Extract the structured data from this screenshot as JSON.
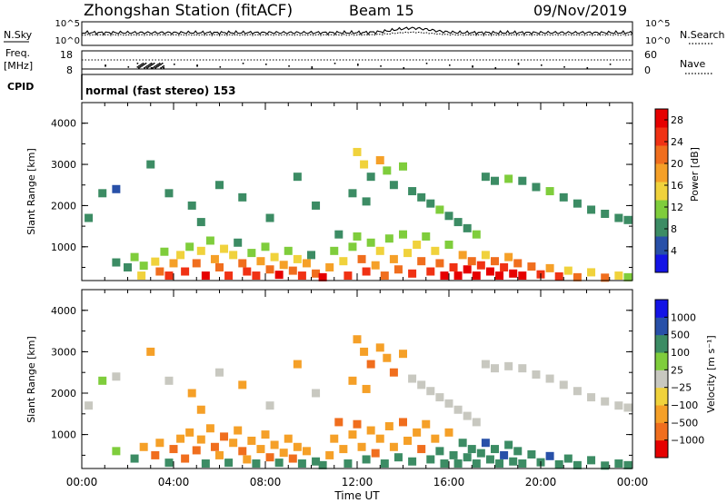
{
  "header": {
    "station": "Zhongshan Station (fitACF)",
    "beam": "Beam 15",
    "date": "09/Nov/2019"
  },
  "nsky_panel": {
    "left_label": "N.Sky",
    "right_label": "N.Search",
    "left_ticks": [
      "10^5",
      "10^0"
    ],
    "right_ticks": [
      "10^5",
      "10^0"
    ]
  },
  "freq_panel": {
    "left_label_1": "Freq.",
    "left_label_2": "[MHz]",
    "left_ticks": [
      "18",
      "8"
    ],
    "right_label": "Nave",
    "right_ticks": [
      "60",
      "0"
    ]
  },
  "cpid": {
    "label": "CPID",
    "text": "normal (fast stereo) 153"
  },
  "colors": {
    "power": [
      "#1414e6",
      "#2850a8",
      "#3c8c64",
      "#7fcd3c",
      "#f0d23c",
      "#f5a028",
      "#f06e1e",
      "#f03214",
      "#e60000"
    ],
    "velocity": [
      "#e60000",
      "#f06e1e",
      "#f5a028",
      "#f0d23c",
      "#c8c8c0",
      "#7fcd3c",
      "#3c8c64",
      "#2850a8",
      "#1414e6"
    ]
  },
  "chart_data": [
    {
      "type": "heatmap",
      "title": "Power [dB]",
      "xlabel": "",
      "ylabel": "Slant Range [km]",
      "x_ticks": [
        "00:00",
        "04:00",
        "08:00",
        "12:00",
        "16:00",
        "20:00",
        "00:00"
      ],
      "xlim": [
        0,
        24
      ],
      "ylim": [
        180,
        4500
      ],
      "y_ticks": [
        "1000",
        "2000",
        "3000",
        "4000"
      ],
      "colorbar_ticks": [
        "4",
        "8",
        "12",
        "16",
        "20",
        "24",
        "28"
      ],
      "colorbar_range": [
        0,
        30
      ],
      "cells": [
        [
          1.5,
          620,
          9
        ],
        [
          2.0,
          500,
          8
        ],
        [
          2.3,
          750,
          12
        ],
        [
          2.6,
          300,
          14
        ],
        [
          2.7,
          540,
          10
        ],
        [
          3.2,
          640,
          16
        ],
        [
          3.4,
          400,
          20
        ],
        [
          3.6,
          880,
          11
        ],
        [
          3.8,
          300,
          26
        ],
        [
          4.0,
          600,
          18
        ],
        [
          4.3,
          800,
          14
        ],
        [
          4.5,
          400,
          24
        ],
        [
          4.7,
          1000,
          12
        ],
        [
          5.0,
          600,
          20
        ],
        [
          5.2,
          900,
          16
        ],
        [
          5.4,
          300,
          28
        ],
        [
          5.6,
          1150,
          10
        ],
        [
          5.8,
          700,
          18
        ],
        [
          6.0,
          500,
          22
        ],
        [
          6.2,
          950,
          14
        ],
        [
          6.4,
          300,
          26
        ],
        [
          6.6,
          800,
          16
        ],
        [
          6.8,
          1100,
          9
        ],
        [
          7.0,
          600,
          20
        ],
        [
          7.2,
          400,
          24
        ],
        [
          7.4,
          850,
          13
        ],
        [
          7.6,
          300,
          26
        ],
        [
          7.8,
          650,
          18
        ],
        [
          8.0,
          1000,
          10
        ],
        [
          8.2,
          450,
          22
        ],
        [
          8.4,
          750,
          15
        ],
        [
          8.6,
          320,
          28
        ],
        [
          8.8,
          560,
          19
        ],
        [
          9.0,
          900,
          11
        ],
        [
          9.2,
          420,
          21
        ],
        [
          9.4,
          700,
          14
        ],
        [
          9.6,
          300,
          25
        ],
        [
          9.8,
          600,
          18
        ],
        [
          10.0,
          800,
          9
        ],
        [
          10.2,
          350,
          22
        ],
        [
          10.5,
          260,
          27
        ],
        [
          10.8,
          500,
          18
        ],
        [
          11.0,
          900,
          12
        ],
        [
          11.2,
          1300,
          9
        ],
        [
          11.4,
          650,
          16
        ],
        [
          11.6,
          300,
          24
        ],
        [
          11.8,
          1000,
          13
        ],
        [
          12.0,
          1250,
          10
        ],
        [
          12.2,
          700,
          20
        ],
        [
          12.4,
          400,
          25
        ],
        [
          12.6,
          1100,
          12
        ],
        [
          12.8,
          550,
          18
        ],
        [
          13.0,
          900,
          14
        ],
        [
          13.2,
          300,
          23
        ],
        [
          13.4,
          1200,
          10
        ],
        [
          13.6,
          700,
          17
        ],
        [
          13.8,
          450,
          22
        ],
        [
          14.0,
          1300,
          11
        ],
        [
          14.2,
          850,
          15
        ],
        [
          14.4,
          350,
          26
        ],
        [
          14.6,
          1050,
          14
        ],
        [
          14.8,
          650,
          20
        ],
        [
          15.0,
          1250,
          12
        ],
        [
          15.2,
          400,
          24
        ],
        [
          15.4,
          900,
          16
        ],
        [
          15.6,
          600,
          22
        ],
        [
          15.8,
          300,
          28
        ],
        [
          16.0,
          1050,
          13
        ],
        [
          16.2,
          500,
          26
        ],
        [
          16.4,
          300,
          29
        ],
        [
          16.6,
          800,
          18
        ],
        [
          16.8,
          450,
          27
        ],
        [
          17.0,
          650,
          21
        ],
        [
          17.2,
          300,
          29
        ],
        [
          17.4,
          550,
          24
        ],
        [
          17.6,
          800,
          16
        ],
        [
          17.8,
          400,
          28
        ],
        [
          18.0,
          650,
          22
        ],
        [
          18.2,
          300,
          29
        ],
        [
          18.4,
          500,
          26
        ],
        [
          18.6,
          750,
          18
        ],
        [
          18.8,
          350,
          28
        ],
        [
          19.0,
          600,
          22
        ],
        [
          19.2,
          300,
          27
        ],
        [
          19.6,
          520,
          20
        ],
        [
          20.0,
          330,
          24
        ],
        [
          20.4,
          480,
          19
        ],
        [
          20.8,
          280,
          25
        ],
        [
          21.2,
          420,
          16
        ],
        [
          21.6,
          260,
          22
        ],
        [
          22.2,
          380,
          15
        ],
        [
          22.8,
          250,
          20
        ],
        [
          23.4,
          300,
          16
        ],
        [
          23.8,
          260,
          12
        ],
        [
          12.0,
          3300,
          16
        ],
        [
          12.3,
          3000,
          14
        ],
        [
          12.6,
          2700,
          9
        ],
        [
          13.0,
          3100,
          18
        ],
        [
          13.3,
          2850,
          12
        ],
        [
          13.6,
          2500,
          8
        ],
        [
          14.0,
          2950,
          10
        ],
        [
          11.8,
          2300,
          7
        ],
        [
          12.4,
          2100,
          8
        ],
        [
          14.4,
          2350,
          9
        ],
        [
          14.8,
          2200,
          8
        ],
        [
          15.2,
          2050,
          9
        ],
        [
          15.6,
          1900,
          10
        ],
        [
          16.0,
          1750,
          8
        ],
        [
          16.4,
          1600,
          9
        ],
        [
          16.8,
          1450,
          8
        ],
        [
          17.2,
          1300,
          10
        ],
        [
          17.6,
          2700,
          8
        ],
        [
          18.0,
          2600,
          9
        ],
        [
          18.6,
          2650,
          12
        ],
        [
          19.2,
          2600,
          8
        ],
        [
          19.8,
          2450,
          9
        ],
        [
          20.4,
          2350,
          10
        ],
        [
          21.0,
          2200,
          8
        ],
        [
          21.6,
          2050,
          9
        ],
        [
          22.2,
          1900,
          8
        ],
        [
          22.8,
          1800,
          9
        ],
        [
          23.4,
          1700,
          8
        ],
        [
          23.8,
          1650,
          7
        ],
        [
          0.3,
          1700,
          7
        ],
        [
          0.9,
          2300,
          8
        ],
        [
          1.5,
          2400,
          6
        ],
        [
          3.0,
          3000,
          8
        ],
        [
          3.8,
          2300,
          7
        ],
        [
          4.8,
          2000,
          8
        ],
        [
          6.0,
          2500,
          7
        ],
        [
          7.0,
          2200,
          8
        ],
        [
          9.4,
          2700,
          8
        ],
        [
          10.2,
          2000,
          9
        ],
        [
          8.2,
          1700,
          8
        ],
        [
          5.2,
          1600,
          7
        ]
      ]
    },
    {
      "type": "heatmap",
      "title": "Velocity [m s⁻¹]",
      "xlabel": "Time UT",
      "ylabel": "Slant Range [km]",
      "x_ticks": [
        "00:00",
        "04:00",
        "08:00",
        "12:00",
        "16:00",
        "20:00",
        "00:00"
      ],
      "xlim": [
        0,
        24
      ],
      "ylim": [
        180,
        4500
      ],
      "y_ticks": [
        "1000",
        "2000",
        "3000",
        "4000"
      ],
      "colorbar_ticks": [
        "1000",
        "500",
        "100",
        "25",
        "−25",
        "−100",
        "−500",
        "−1000"
      ],
      "cells": [
        [
          1.5,
          600,
          5
        ],
        [
          2.3,
          420,
          6
        ],
        [
          2.7,
          700,
          2
        ],
        [
          3.2,
          500,
          1
        ],
        [
          3.4,
          800,
          2
        ],
        [
          3.8,
          320,
          6
        ],
        [
          4.0,
          650,
          1
        ],
        [
          4.3,
          900,
          2
        ],
        [
          4.5,
          420,
          1
        ],
        [
          4.7,
          1050,
          2
        ],
        [
          5.0,
          620,
          1
        ],
        [
          5.2,
          880,
          2
        ],
        [
          5.4,
          300,
          6
        ],
        [
          5.6,
          1150,
          2
        ],
        [
          5.8,
          700,
          1
        ],
        [
          6.0,
          500,
          2
        ],
        [
          6.2,
          950,
          1
        ],
        [
          6.4,
          320,
          6
        ],
        [
          6.6,
          800,
          2
        ],
        [
          6.8,
          1100,
          2
        ],
        [
          7.0,
          600,
          1
        ],
        [
          7.2,
          400,
          2
        ],
        [
          7.4,
          850,
          2
        ],
        [
          7.6,
          300,
          6
        ],
        [
          7.8,
          650,
          2
        ],
        [
          8.0,
          1000,
          2
        ],
        [
          8.2,
          450,
          1
        ],
        [
          8.4,
          750,
          2
        ],
        [
          8.6,
          320,
          6
        ],
        [
          8.8,
          560,
          2
        ],
        [
          9.0,
          900,
          2
        ],
        [
          9.2,
          420,
          1
        ],
        [
          9.4,
          700,
          2
        ],
        [
          9.6,
          300,
          6
        ],
        [
          9.8,
          600,
          2
        ],
        [
          10.2,
          350,
          6
        ],
        [
          10.5,
          260,
          6
        ],
        [
          10.8,
          500,
          2
        ],
        [
          11.0,
          900,
          2
        ],
        [
          11.2,
          1300,
          1
        ],
        [
          11.4,
          650,
          2
        ],
        [
          11.6,
          300,
          6
        ],
        [
          11.8,
          1000,
          2
        ],
        [
          12.0,
          1250,
          1
        ],
        [
          12.2,
          700,
          2
        ],
        [
          12.4,
          400,
          6
        ],
        [
          12.6,
          1100,
          2
        ],
        [
          12.8,
          550,
          1
        ],
        [
          13.0,
          900,
          2
        ],
        [
          13.2,
          300,
          6
        ],
        [
          13.4,
          1200,
          2
        ],
        [
          13.6,
          700,
          2
        ],
        [
          13.8,
          450,
          6
        ],
        [
          14.0,
          1300,
          1
        ],
        [
          14.2,
          850,
          2
        ],
        [
          14.4,
          350,
          6
        ],
        [
          14.6,
          1050,
          2
        ],
        [
          14.8,
          650,
          1
        ],
        [
          15.0,
          1250,
          2
        ],
        [
          15.2,
          400,
          6
        ],
        [
          15.4,
          900,
          2
        ],
        [
          15.6,
          600,
          6
        ],
        [
          15.8,
          300,
          6
        ],
        [
          16.0,
          1050,
          2
        ],
        [
          16.2,
          500,
          6
        ],
        [
          16.4,
          300,
          6
        ],
        [
          16.6,
          800,
          6
        ],
        [
          16.8,
          450,
          6
        ],
        [
          17.0,
          650,
          6
        ],
        [
          17.2,
          300,
          6
        ],
        [
          17.4,
          550,
          6
        ],
        [
          17.6,
          800,
          7
        ],
        [
          17.8,
          400,
          6
        ],
        [
          18.0,
          650,
          6
        ],
        [
          18.2,
          300,
          6
        ],
        [
          18.4,
          500,
          7
        ],
        [
          18.6,
          750,
          6
        ],
        [
          18.8,
          350,
          6
        ],
        [
          19.0,
          600,
          6
        ],
        [
          19.2,
          300,
          6
        ],
        [
          19.6,
          520,
          6
        ],
        [
          20.0,
          330,
          6
        ],
        [
          20.4,
          480,
          7
        ],
        [
          20.8,
          280,
          6
        ],
        [
          21.2,
          420,
          6
        ],
        [
          21.6,
          260,
          6
        ],
        [
          22.2,
          380,
          6
        ],
        [
          22.8,
          250,
          6
        ],
        [
          23.4,
          300,
          6
        ],
        [
          23.8,
          260,
          6
        ],
        [
          12.0,
          3300,
          2
        ],
        [
          12.3,
          3000,
          2
        ],
        [
          12.6,
          2700,
          1
        ],
        [
          13.0,
          3100,
          2
        ],
        [
          13.3,
          2850,
          2
        ],
        [
          13.6,
          2500,
          1
        ],
        [
          14.0,
          2950,
          2
        ],
        [
          11.8,
          2300,
          2
        ],
        [
          12.4,
          2100,
          2
        ],
        [
          14.4,
          2350,
          4
        ],
        [
          14.8,
          2200,
          4
        ],
        [
          15.2,
          2050,
          4
        ],
        [
          15.6,
          1900,
          4
        ],
        [
          16.0,
          1750,
          4
        ],
        [
          16.4,
          1600,
          4
        ],
        [
          16.8,
          1450,
          4
        ],
        [
          17.2,
          1300,
          4
        ],
        [
          17.6,
          2700,
          4
        ],
        [
          18.0,
          2600,
          4
        ],
        [
          18.6,
          2650,
          4
        ],
        [
          19.2,
          2600,
          4
        ],
        [
          19.8,
          2450,
          4
        ],
        [
          20.4,
          2350,
          4
        ],
        [
          21.0,
          2200,
          4
        ],
        [
          21.6,
          2050,
          4
        ],
        [
          22.2,
          1900,
          4
        ],
        [
          22.8,
          1800,
          4
        ],
        [
          23.4,
          1700,
          4
        ],
        [
          23.8,
          1650,
          4
        ],
        [
          0.3,
          1700,
          4
        ],
        [
          0.9,
          2300,
          5
        ],
        [
          1.5,
          2400,
          4
        ],
        [
          3.0,
          3000,
          2
        ],
        [
          3.8,
          2300,
          4
        ],
        [
          4.8,
          2000,
          2
        ],
        [
          6.0,
          2500,
          4
        ],
        [
          7.0,
          2200,
          2
        ],
        [
          9.4,
          2700,
          2
        ],
        [
          10.2,
          2000,
          4
        ],
        [
          8.2,
          1700,
          4
        ],
        [
          5.2,
          1600,
          2
        ]
      ]
    }
  ]
}
